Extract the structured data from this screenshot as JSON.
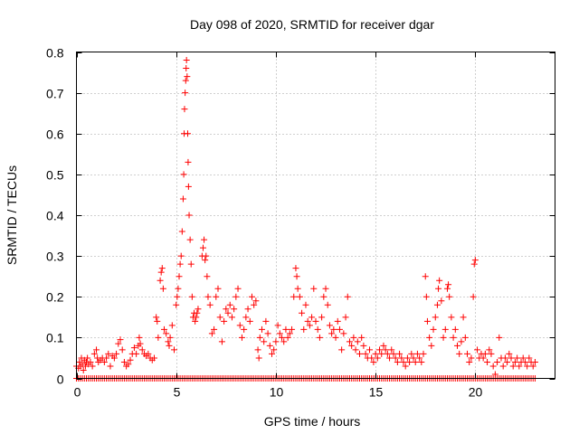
{
  "colors": {
    "series": "#ff0000",
    "frame": "#000000",
    "grid": "#a0a0a0",
    "background": "#ffffff"
  },
  "chart_data": {
    "type": "scatter",
    "title": "Day 098 of 2020, SRMTID for receiver dgar",
    "xlabel": "GPS time / hours",
    "ylabel": "SRMTID / TECUs",
    "xlim": [
      0,
      24
    ],
    "ylim": [
      0,
      0.8
    ],
    "xticks": [
      0,
      5,
      10,
      15,
      20
    ],
    "xtick_labels": [
      "0",
      "5",
      "10",
      "15",
      "20"
    ],
    "yticks": [
      0,
      0.1,
      0.2,
      0.3,
      0.4,
      0.5,
      0.6,
      0.7,
      0.8
    ],
    "ytick_labels": [
      "0",
      "0.1",
      "0.2",
      "0.3",
      "0.4",
      "0.5",
      "0.6",
      "0.7",
      "0.8"
    ],
    "grid": true,
    "marker": "+",
    "series": [
      {
        "name": "SRMTID",
        "points": [
          [
            0.0,
            0.03
          ],
          [
            0.1,
            0.025
          ],
          [
            0.15,
            0.04
          ],
          [
            0.2,
            0.03
          ],
          [
            0.25,
            0.05
          ],
          [
            0.3,
            0.035
          ],
          [
            0.35,
            0.02
          ],
          [
            0.4,
            0.045
          ],
          [
            0.45,
            0.03
          ],
          [
            0.5,
            0.04
          ],
          [
            0.55,
            0.05
          ],
          [
            0.6,
            0.035
          ],
          [
            0.7,
            0.04
          ],
          [
            0.8,
            0.03
          ],
          [
            0.9,
            0.06
          ],
          [
            1.0,
            0.07
          ],
          [
            1.05,
            0.05
          ],
          [
            1.1,
            0.04
          ],
          [
            1.2,
            0.045
          ],
          [
            1.3,
            0.05
          ],
          [
            1.4,
            0.04
          ],
          [
            1.5,
            0.05
          ],
          [
            1.6,
            0.06
          ],
          [
            1.7,
            0.03
          ],
          [
            1.8,
            0.055
          ],
          [
            1.9,
            0.05
          ],
          [
            2.0,
            0.06
          ],
          [
            2.1,
            0.085
          ],
          [
            2.2,
            0.095
          ],
          [
            2.3,
            0.07
          ],
          [
            2.4,
            0.04
          ],
          [
            2.5,
            0.03
          ],
          [
            2.6,
            0.035
          ],
          [
            2.7,
            0.045
          ],
          [
            2.8,
            0.06
          ],
          [
            2.9,
            0.075
          ],
          [
            3.0,
            0.06
          ],
          [
            3.1,
            0.08
          ],
          [
            3.15,
            0.1
          ],
          [
            3.2,
            0.085
          ],
          [
            3.3,
            0.07
          ],
          [
            3.4,
            0.06
          ],
          [
            3.5,
            0.055
          ],
          [
            3.6,
            0.06
          ],
          [
            3.7,
            0.05
          ],
          [
            3.8,
            0.045
          ],
          [
            3.9,
            0.05
          ],
          [
            4.0,
            0.15
          ],
          [
            4.05,
            0.14
          ],
          [
            4.1,
            0.1
          ],
          [
            4.2,
            0.24
          ],
          [
            4.25,
            0.26
          ],
          [
            4.3,
            0.27
          ],
          [
            4.35,
            0.22
          ],
          [
            4.4,
            0.12
          ],
          [
            4.5,
            0.11
          ],
          [
            4.6,
            0.09
          ],
          [
            4.65,
            0.08
          ],
          [
            4.7,
            0.1
          ],
          [
            4.8,
            0.13
          ],
          [
            4.9,
            0.07
          ],
          [
            5.0,
            0.18
          ],
          [
            5.05,
            0.2
          ],
          [
            5.1,
            0.22
          ],
          [
            5.15,
            0.25
          ],
          [
            5.2,
            0.28
          ],
          [
            5.25,
            0.3
          ],
          [
            5.3,
            0.36
          ],
          [
            5.35,
            0.44
          ],
          [
            5.38,
            0.5
          ],
          [
            5.4,
            0.6
          ],
          [
            5.42,
            0.66
          ],
          [
            5.45,
            0.7
          ],
          [
            5.48,
            0.73
          ],
          [
            5.5,
            0.76
          ],
          [
            5.52,
            0.78
          ],
          [
            5.55,
            0.74
          ],
          [
            5.58,
            0.6
          ],
          [
            5.6,
            0.53
          ],
          [
            5.62,
            0.47
          ],
          [
            5.65,
            0.4
          ],
          [
            5.7,
            0.34
          ],
          [
            5.75,
            0.28
          ],
          [
            5.8,
            0.2
          ],
          [
            5.85,
            0.15
          ],
          [
            5.9,
            0.16
          ],
          [
            5.95,
            0.14
          ],
          [
            6.0,
            0.15
          ],
          [
            6.05,
            0.16
          ],
          [
            6.1,
            0.17
          ],
          [
            6.3,
            0.3
          ],
          [
            6.35,
            0.32
          ],
          [
            6.4,
            0.34
          ],
          [
            6.45,
            0.29
          ],
          [
            6.5,
            0.3
          ],
          [
            6.55,
            0.25
          ],
          [
            6.6,
            0.2
          ],
          [
            6.7,
            0.18
          ],
          [
            6.8,
            0.11
          ],
          [
            6.9,
            0.12
          ],
          [
            7.0,
            0.2
          ],
          [
            7.1,
            0.22
          ],
          [
            7.2,
            0.15
          ],
          [
            7.3,
            0.09
          ],
          [
            7.4,
            0.14
          ],
          [
            7.5,
            0.17
          ],
          [
            7.6,
            0.16
          ],
          [
            7.7,
            0.18
          ],
          [
            7.8,
            0.15
          ],
          [
            7.9,
            0.17
          ],
          [
            8.0,
            0.2
          ],
          [
            8.1,
            0.22
          ],
          [
            8.2,
            0.13
          ],
          [
            8.3,
            0.1
          ],
          [
            8.4,
            0.12
          ],
          [
            8.5,
            0.15
          ],
          [
            8.6,
            0.17
          ],
          [
            8.7,
            0.14
          ],
          [
            8.8,
            0.2
          ],
          [
            8.9,
            0.18
          ],
          [
            9.0,
            0.19
          ],
          [
            9.1,
            0.07
          ],
          [
            9.15,
            0.05
          ],
          [
            9.2,
            0.1
          ],
          [
            9.3,
            0.12
          ],
          [
            9.4,
            0.09
          ],
          [
            9.5,
            0.14
          ],
          [
            9.6,
            0.11
          ],
          [
            9.7,
            0.08
          ],
          [
            9.8,
            0.06
          ],
          [
            9.9,
            0.07
          ],
          [
            10.0,
            0.09
          ],
          [
            10.1,
            0.13
          ],
          [
            10.2,
            0.11
          ],
          [
            10.3,
            0.1
          ],
          [
            10.4,
            0.09
          ],
          [
            10.5,
            0.12
          ],
          [
            10.6,
            0.1
          ],
          [
            10.7,
            0.11
          ],
          [
            10.8,
            0.12
          ],
          [
            10.9,
            0.2
          ],
          [
            11.0,
            0.27
          ],
          [
            11.05,
            0.25
          ],
          [
            11.1,
            0.22
          ],
          [
            11.2,
            0.2
          ],
          [
            11.3,
            0.16
          ],
          [
            11.4,
            0.12
          ],
          [
            11.5,
            0.18
          ],
          [
            11.6,
            0.14
          ],
          [
            11.7,
            0.13
          ],
          [
            11.8,
            0.15
          ],
          [
            11.9,
            0.22
          ],
          [
            12.0,
            0.14
          ],
          [
            12.1,
            0.12
          ],
          [
            12.2,
            0.1
          ],
          [
            12.3,
            0.15
          ],
          [
            12.4,
            0.2
          ],
          [
            12.5,
            0.22
          ],
          [
            12.6,
            0.18
          ],
          [
            12.7,
            0.13
          ],
          [
            12.8,
            0.11
          ],
          [
            12.9,
            0.12
          ],
          [
            13.0,
            0.1
          ],
          [
            13.1,
            0.14
          ],
          [
            13.2,
            0.12
          ],
          [
            13.3,
            0.07
          ],
          [
            13.4,
            0.11
          ],
          [
            13.5,
            0.15
          ],
          [
            13.6,
            0.2
          ],
          [
            13.7,
            0.09
          ],
          [
            13.8,
            0.08
          ],
          [
            13.9,
            0.1
          ],
          [
            14.0,
            0.07
          ],
          [
            14.1,
            0.09
          ],
          [
            14.2,
            0.06
          ],
          [
            14.3,
            0.1
          ],
          [
            14.4,
            0.08
          ],
          [
            14.5,
            0.06
          ],
          [
            14.6,
            0.05
          ],
          [
            14.7,
            0.07
          ],
          [
            14.8,
            0.05
          ],
          [
            14.9,
            0.04
          ],
          [
            15.0,
            0.06
          ],
          [
            15.1,
            0.05
          ],
          [
            15.2,
            0.07
          ],
          [
            15.3,
            0.06
          ],
          [
            15.4,
            0.08
          ],
          [
            15.5,
            0.07
          ],
          [
            15.6,
            0.06
          ],
          [
            15.7,
            0.05
          ],
          [
            15.8,
            0.07
          ],
          [
            15.9,
            0.06
          ],
          [
            16.0,
            0.05
          ],
          [
            16.1,
            0.04
          ],
          [
            16.2,
            0.06
          ],
          [
            16.3,
            0.05
          ],
          [
            16.4,
            0.04
          ],
          [
            16.5,
            0.03
          ],
          [
            16.6,
            0.05
          ],
          [
            16.7,
            0.04
          ],
          [
            16.8,
            0.06
          ],
          [
            16.9,
            0.05
          ],
          [
            17.0,
            0.04
          ],
          [
            17.1,
            0.06
          ],
          [
            17.2,
            0.05
          ],
          [
            17.3,
            0.04
          ],
          [
            17.4,
            0.06
          ],
          [
            17.5,
            0.25
          ],
          [
            17.55,
            0.2
          ],
          [
            17.6,
            0.14
          ],
          [
            17.7,
            0.1
          ],
          [
            17.8,
            0.08
          ],
          [
            17.9,
            0.12
          ],
          [
            18.0,
            0.15
          ],
          [
            18.1,
            0.18
          ],
          [
            18.15,
            0.22
          ],
          [
            18.2,
            0.24
          ],
          [
            18.3,
            0.19
          ],
          [
            18.4,
            0.1
          ],
          [
            18.5,
            0.12
          ],
          [
            18.6,
            0.22
          ],
          [
            18.65,
            0.23
          ],
          [
            18.7,
            0.2
          ],
          [
            18.8,
            0.15
          ],
          [
            18.9,
            0.1
          ],
          [
            19.0,
            0.12
          ],
          [
            19.1,
            0.08
          ],
          [
            19.2,
            0.06
          ],
          [
            19.3,
            0.09
          ],
          [
            19.4,
            0.15
          ],
          [
            19.5,
            0.1
          ],
          [
            19.6,
            0.06
          ],
          [
            19.7,
            0.04
          ],
          [
            19.8,
            0.05
          ],
          [
            19.9,
            0.2
          ],
          [
            19.95,
            0.28
          ],
          [
            20.0,
            0.29
          ],
          [
            20.1,
            0.07
          ],
          [
            20.2,
            0.05
          ],
          [
            20.3,
            0.06
          ],
          [
            20.4,
            0.05
          ],
          [
            20.5,
            0.06
          ],
          [
            20.6,
            0.04
          ],
          [
            20.7,
            0.07
          ],
          [
            20.8,
            0.06
          ],
          [
            20.9,
            0.03
          ],
          [
            21.0,
            0.01
          ],
          [
            21.1,
            0.04
          ],
          [
            21.2,
            0.1
          ],
          [
            21.3,
            0.05
          ],
          [
            21.4,
            0.03
          ],
          [
            21.5,
            0.05
          ],
          [
            21.6,
            0.04
          ],
          [
            21.7,
            0.06
          ],
          [
            21.8,
            0.05
          ],
          [
            21.9,
            0.03
          ],
          [
            22.0,
            0.04
          ],
          [
            22.1,
            0.05
          ],
          [
            22.2,
            0.03
          ],
          [
            22.3,
            0.04
          ],
          [
            22.4,
            0.05
          ],
          [
            22.5,
            0.04
          ],
          [
            22.6,
            0.03
          ],
          [
            22.7,
            0.05
          ],
          [
            22.8,
            0.04
          ],
          [
            22.9,
            0.03
          ],
          [
            23.0,
            0.04
          ]
        ],
        "baseline": {
          "y": 0.0,
          "x_from": 0.0,
          "x_to": 23.0,
          "step": 0.1
        }
      }
    ]
  }
}
